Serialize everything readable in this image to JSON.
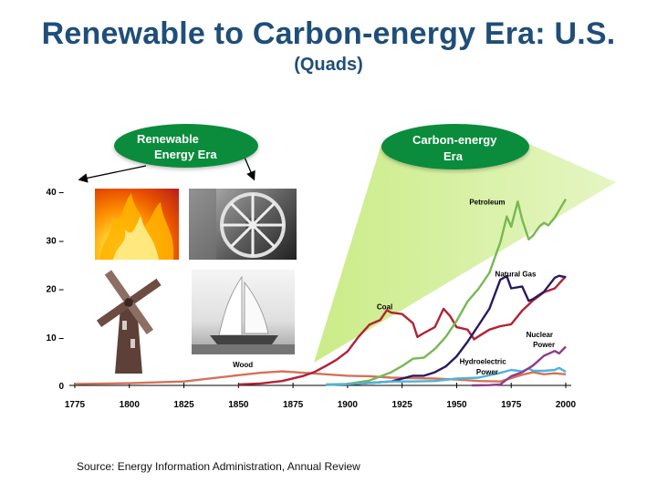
{
  "header": {
    "title": "Renewable to Carbon-energy Era: U.S.",
    "subtitle": "(Quads)"
  },
  "callouts": {
    "renewable_line1": "Renewable",
    "renewable_line2": "Energy Era",
    "carbon_line1": "Carbon-energy",
    "carbon_line2": "Era"
  },
  "images": [
    "fire",
    "waterwheel",
    "windmill",
    "sailing-ship"
  ],
  "source": "Source: Energy Information Administration, Annual Review",
  "colors": {
    "title": "#1f4e79",
    "bubble": "#0a8c3c",
    "wood": "#d2735a",
    "coal": "#b22234",
    "petroleum": "#77b852",
    "natural_gas": "#2a1a5e",
    "nuclear": "#8e3c8e",
    "hydro": "#4fb3d9"
  },
  "chart_data": {
    "type": "line",
    "title": "Renewable to Carbon-energy Era: U.S.",
    "ylabel": "(Quads)",
    "xlim": [
      1775,
      2000
    ],
    "ylim": [
      0,
      40
    ],
    "x_ticks": [
      1775,
      1800,
      1825,
      1850,
      1875,
      1900,
      1925,
      1950,
      1975,
      2000
    ],
    "y_ticks": [
      0,
      10,
      20,
      30,
      40
    ],
    "grid": false,
    "legend": "inline labels",
    "series": [
      {
        "name": "Wood",
        "key": "wood",
        "points": [
          [
            1775,
            0.3
          ],
          [
            1800,
            0.45
          ],
          [
            1825,
            0.8
          ],
          [
            1850,
            2.1
          ],
          [
            1860,
            2.6
          ],
          [
            1870,
            2.9
          ],
          [
            1880,
            2.6
          ],
          [
            1890,
            2.3
          ],
          [
            1900,
            2.0
          ],
          [
            1910,
            1.9
          ],
          [
            1920,
            1.6
          ],
          [
            1930,
            1.5
          ],
          [
            1940,
            1.4
          ],
          [
            1950,
            1.2
          ],
          [
            1960,
            0.9
          ],
          [
            1970,
            0.8
          ],
          [
            1980,
            2.2
          ],
          [
            1985,
            2.7
          ],
          [
            1990,
            2.3
          ],
          [
            1995,
            2.5
          ],
          [
            2000,
            2.3
          ]
        ]
      },
      {
        "name": "Coal",
        "key": "coal",
        "points": [
          [
            1850,
            0.2
          ],
          [
            1860,
            0.4
          ],
          [
            1870,
            0.9
          ],
          [
            1880,
            2.0
          ],
          [
            1885,
            2.8
          ],
          [
            1890,
            4.0
          ],
          [
            1895,
            5.3
          ],
          [
            1900,
            7.0
          ],
          [
            1905,
            10.0
          ],
          [
            1910,
            12.5
          ],
          [
            1915,
            13.5
          ],
          [
            1918,
            15.5
          ],
          [
            1920,
            15.0
          ],
          [
            1925,
            14.7
          ],
          [
            1930,
            12.8
          ],
          [
            1932,
            10.0
          ],
          [
            1935,
            10.8
          ],
          [
            1940,
            12.0
          ],
          [
            1944,
            15.8
          ],
          [
            1947,
            14.3
          ],
          [
            1950,
            12.0
          ],
          [
            1955,
            11.5
          ],
          [
            1958,
            9.5
          ],
          [
            1960,
            10.1
          ],
          [
            1965,
            11.5
          ],
          [
            1970,
            12.2
          ],
          [
            1975,
            12.6
          ],
          [
            1980,
            15.4
          ],
          [
            1985,
            17.5
          ],
          [
            1990,
            19.2
          ],
          [
            1995,
            20.0
          ],
          [
            2000,
            22.5
          ]
        ]
      },
      {
        "name": "Petroleum",
        "key": "petroleum",
        "points": [
          [
            1890,
            0.2
          ],
          [
            1900,
            0.3
          ],
          [
            1910,
            1.0
          ],
          [
            1920,
            2.7
          ],
          [
            1925,
            4.0
          ],
          [
            1930,
            5.5
          ],
          [
            1935,
            5.7
          ],
          [
            1940,
            7.5
          ],
          [
            1945,
            10.0
          ],
          [
            1950,
            13.3
          ],
          [
            1955,
            17.3
          ],
          [
            1960,
            19.9
          ],
          [
            1965,
            23.2
          ],
          [
            1970,
            29.5
          ],
          [
            1973,
            34.8
          ],
          [
            1975,
            32.7
          ],
          [
            1978,
            37.9
          ],
          [
            1980,
            34.2
          ],
          [
            1983,
            30.1
          ],
          [
            1985,
            30.9
          ],
          [
            1988,
            32.8
          ],
          [
            1990,
            33.5
          ],
          [
            1992,
            33.0
          ],
          [
            1995,
            34.6
          ],
          [
            2000,
            38.4
          ]
        ]
      },
      {
        "name": "Natural Gas",
        "key": "natural_gas",
        "points": [
          [
            1900,
            0.2
          ],
          [
            1910,
            0.5
          ],
          [
            1920,
            0.8
          ],
          [
            1930,
            2.0
          ],
          [
            1935,
            2.0
          ],
          [
            1940,
            2.7
          ],
          [
            1945,
            3.9
          ],
          [
            1950,
            6.0
          ],
          [
            1955,
            9.0
          ],
          [
            1960,
            12.4
          ],
          [
            1965,
            15.8
          ],
          [
            1970,
            21.8
          ],
          [
            1973,
            22.5
          ],
          [
            1975,
            20.0
          ],
          [
            1980,
            20.4
          ],
          [
            1983,
            17.4
          ],
          [
            1985,
            17.8
          ],
          [
            1990,
            19.3
          ],
          [
            1995,
            22.2
          ],
          [
            1997,
            22.6
          ],
          [
            2000,
            22.3
          ]
        ]
      },
      {
        "name": "Hydroelectric Power",
        "key": "hydro",
        "points": [
          [
            1890,
            0.1
          ],
          [
            1900,
            0.25
          ],
          [
            1910,
            0.5
          ],
          [
            1920,
            0.8
          ],
          [
            1930,
            0.8
          ],
          [
            1940,
            0.9
          ],
          [
            1950,
            1.4
          ],
          [
            1960,
            1.6
          ],
          [
            1970,
            2.6
          ],
          [
            1975,
            3.2
          ],
          [
            1980,
            2.9
          ],
          [
            1983,
            3.5
          ],
          [
            1985,
            3.0
          ],
          [
            1990,
            3.0
          ],
          [
            1995,
            3.2
          ],
          [
            1997,
            3.6
          ],
          [
            2000,
            2.8
          ]
        ]
      },
      {
        "name": "Nuclear Power",
        "key": "nuclear",
        "points": [
          [
            1957,
            0.0
          ],
          [
            1965,
            0.05
          ],
          [
            1970,
            0.2
          ],
          [
            1975,
            1.9
          ],
          [
            1980,
            2.7
          ],
          [
            1985,
            4.1
          ],
          [
            1990,
            6.1
          ],
          [
            1995,
            7.1
          ],
          [
            1997,
            6.6
          ],
          [
            2000,
            8.0
          ]
        ]
      }
    ],
    "series_labels": [
      "Wood",
      "Coal",
      "Petroleum",
      "Natural Gas",
      "Nuclear Power",
      "Hydroelectric Power"
    ]
  }
}
